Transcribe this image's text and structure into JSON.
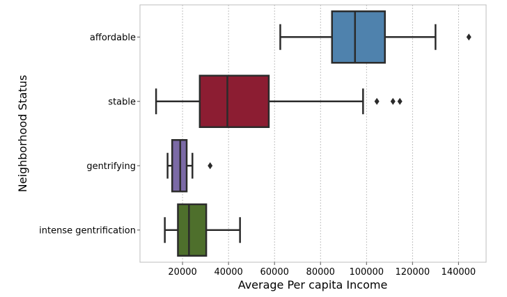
{
  "chart_data": {
    "type": "boxplot",
    "orientation": "horizontal",
    "xlabel": "Average Per capita Income",
    "ylabel": "Neighborhood Status",
    "xlim": [
      1500,
      152000
    ],
    "xticks": [
      20000,
      40000,
      60000,
      80000,
      100000,
      120000,
      140000
    ],
    "xtick_labels": [
      "20000",
      "40000",
      "60000",
      "80000",
      "100000",
      "120000",
      "140000"
    ],
    "grid": "vertical",
    "categories": [
      "affordable",
      "stable",
      "gentrifying",
      "intense gentrification"
    ],
    "boxes": [
      {
        "category": "affordable",
        "whisker_low": 62500,
        "q1": 85000,
        "median": 95000,
        "q3": 108000,
        "whisker_high": 130000,
        "outliers": [
          144500
        ],
        "color": "#4f82ad"
      },
      {
        "category": "stable",
        "whisker_low": 8500,
        "q1": 27500,
        "median": 39500,
        "q3": 57500,
        "whisker_high": 98500,
        "outliers": [
          104500,
          111500,
          114500
        ],
        "color": "#8c1d32"
      },
      {
        "category": "gentrifying",
        "whisker_low": 13500,
        "q1": 15500,
        "median": 19000,
        "q3": 21800,
        "whisker_high": 24300,
        "outliers": [
          32000
        ],
        "color": "#7b6aa6"
      },
      {
        "category": "intense gentrification",
        "whisker_low": 12300,
        "q1": 18000,
        "median": 22800,
        "q3": 30300,
        "whisker_high": 45000,
        "outliers": [],
        "color": "#4e6f2c"
      }
    ]
  }
}
